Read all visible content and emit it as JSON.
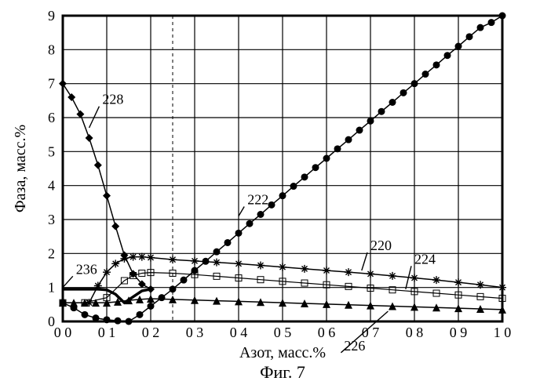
{
  "figure": {
    "caption": "Фиг. 7",
    "caption_fontsize": 22,
    "xlabel": "Азот, масс.%",
    "ylabel": "Фаза, масс.%",
    "label_fontsize": 20,
    "tick_fontsize": 18,
    "background_color": "#ffffff",
    "grid_color": "#000000",
    "grid_width": 1.2,
    "border_width": 3,
    "xlim": [
      0.0,
      1.0
    ],
    "ylim": [
      0,
      9
    ],
    "xticks": [
      0.0,
      0.1,
      0.2,
      0.3,
      0.4,
      0.5,
      0.6,
      0.7,
      0.8,
      0.9,
      1.0
    ],
    "xtick_labels": [
      "0 0",
      "0 1",
      "0 2",
      "0 3",
      "0 4",
      "0 5",
      "0 6",
      "0 7",
      "0 8",
      "0 9",
      "1 0"
    ],
    "yticks": [
      0,
      1,
      2,
      3,
      4,
      5,
      6,
      7,
      8,
      9
    ],
    "dashed_vline_x": 0.25,
    "series": {
      "s222": {
        "label": "222",
        "marker": "circle",
        "marker_size": 4.5,
        "line_width": 1.5,
        "color": "#000000",
        "x": [
          0.0,
          0.025,
          0.05,
          0.075,
          0.1,
          0.125,
          0.15,
          0.175,
          0.2,
          0.225,
          0.25,
          0.275,
          0.3,
          0.325,
          0.35,
          0.375,
          0.4,
          0.425,
          0.45,
          0.475,
          0.5,
          0.525,
          0.55,
          0.575,
          0.6,
          0.625,
          0.65,
          0.675,
          0.7,
          0.725,
          0.75,
          0.775,
          0.8,
          0.825,
          0.85,
          0.875,
          0.9,
          0.925,
          0.95,
          0.975,
          1.0
        ],
        "y": [
          0.55,
          0.4,
          0.2,
          0.1,
          0.05,
          0.02,
          0.0,
          0.2,
          0.45,
          0.7,
          0.95,
          1.22,
          1.5,
          1.77,
          2.05,
          2.32,
          2.6,
          2.88,
          3.15,
          3.43,
          3.7,
          3.98,
          4.25,
          4.53,
          4.8,
          5.08,
          5.35,
          5.63,
          5.9,
          6.18,
          6.45,
          6.73,
          7.0,
          7.28,
          7.55,
          7.83,
          8.1,
          8.38,
          8.65,
          8.8,
          9.0
        ],
        "callout_x": 0.42,
        "callout_y": 3.45,
        "leader_to_x": 0.4,
        "leader_to_y": 3.1
      },
      "s228": {
        "label": "228",
        "marker": "diamond",
        "marker_size": 5,
        "line_width": 1.5,
        "color": "#000000",
        "x": [
          0.0,
          0.02,
          0.04,
          0.06,
          0.08,
          0.1,
          0.12,
          0.14,
          0.16,
          0.18,
          0.2
        ],
        "y": [
          7.0,
          6.6,
          6.1,
          5.4,
          4.6,
          3.7,
          2.8,
          1.95,
          1.4,
          1.1,
          0.95
        ],
        "callout_x": 0.09,
        "callout_y": 6.4,
        "leader_to_x": 0.06,
        "leader_to_y": 5.7
      },
      "s220": {
        "label": "220",
        "marker": "asterisk",
        "marker_size": 5,
        "line_width": 1.5,
        "color": "#000000",
        "x": [
          0.06,
          0.08,
          0.1,
          0.12,
          0.14,
          0.16,
          0.18,
          0.2,
          0.25,
          0.3,
          0.35,
          0.4,
          0.45,
          0.5,
          0.55,
          0.6,
          0.65,
          0.7,
          0.75,
          0.8,
          0.85,
          0.9,
          0.95,
          1.0
        ],
        "y": [
          0.55,
          1.05,
          1.45,
          1.7,
          1.85,
          1.9,
          1.9,
          1.88,
          1.82,
          1.78,
          1.74,
          1.7,
          1.65,
          1.6,
          1.55,
          1.5,
          1.45,
          1.4,
          1.34,
          1.28,
          1.22,
          1.15,
          1.08,
          1.0
        ],
        "callout_x": 0.7,
        "callout_y": 2.1,
        "leader_to_x": 0.68,
        "leader_to_y": 1.5
      },
      "s224": {
        "label": "224",
        "marker": "square-open",
        "marker_size": 4,
        "line_width": 1.2,
        "color": "#000000",
        "x": [
          0.0,
          0.05,
          0.1,
          0.14,
          0.16,
          0.18,
          0.2,
          0.25,
          0.3,
          0.35,
          0.4,
          0.45,
          0.5,
          0.55,
          0.6,
          0.65,
          0.7,
          0.75,
          0.8,
          0.85,
          0.9,
          0.95,
          1.0
        ],
        "y": [
          0.55,
          0.55,
          0.7,
          1.2,
          1.35,
          1.42,
          1.44,
          1.42,
          1.38,
          1.33,
          1.28,
          1.23,
          1.18,
          1.13,
          1.08,
          1.03,
          0.98,
          0.93,
          0.88,
          0.83,
          0.78,
          0.73,
          0.68
        ],
        "callout_x": 0.8,
        "callout_y": 1.7,
        "leader_to_x": 0.78,
        "leader_to_y": 0.95
      },
      "s226": {
        "label": "226",
        "marker": "triangle",
        "marker_size": 5,
        "line_width": 1.5,
        "color": "#000000",
        "x": [
          0.0,
          0.025,
          0.05,
          0.075,
          0.1,
          0.125,
          0.15,
          0.175,
          0.2,
          0.25,
          0.3,
          0.35,
          0.4,
          0.45,
          0.5,
          0.55,
          0.6,
          0.65,
          0.7,
          0.75,
          0.8,
          0.85,
          0.9,
          0.95,
          1.0
        ],
        "y": [
          0.55,
          0.55,
          0.55,
          0.55,
          0.55,
          0.58,
          0.62,
          0.65,
          0.67,
          0.65,
          0.63,
          0.61,
          0.59,
          0.57,
          0.55,
          0.53,
          0.51,
          0.49,
          0.47,
          0.45,
          0.43,
          0.41,
          0.39,
          0.37,
          0.35
        ],
        "callout_x": 0.64,
        "callout_y": -0.85,
        "leader_to_x": 0.74,
        "leader_to_y": 0.3
      },
      "s236": {
        "label": "236",
        "marker": "none",
        "marker_size": 0,
        "line_width": 3.5,
        "color": "#000000",
        "x": [
          0.0,
          0.03,
          0.06,
          0.08,
          0.1,
          0.12,
          0.14,
          0.18,
          0.2
        ],
        "y": [
          0.95,
          0.95,
          0.95,
          0.95,
          0.93,
          0.8,
          0.55,
          0.9,
          0.95
        ],
        "callout_x": 0.03,
        "callout_y": 1.4,
        "leader_to_x": 0.0,
        "leader_to_y": 1.0
      }
    }
  }
}
